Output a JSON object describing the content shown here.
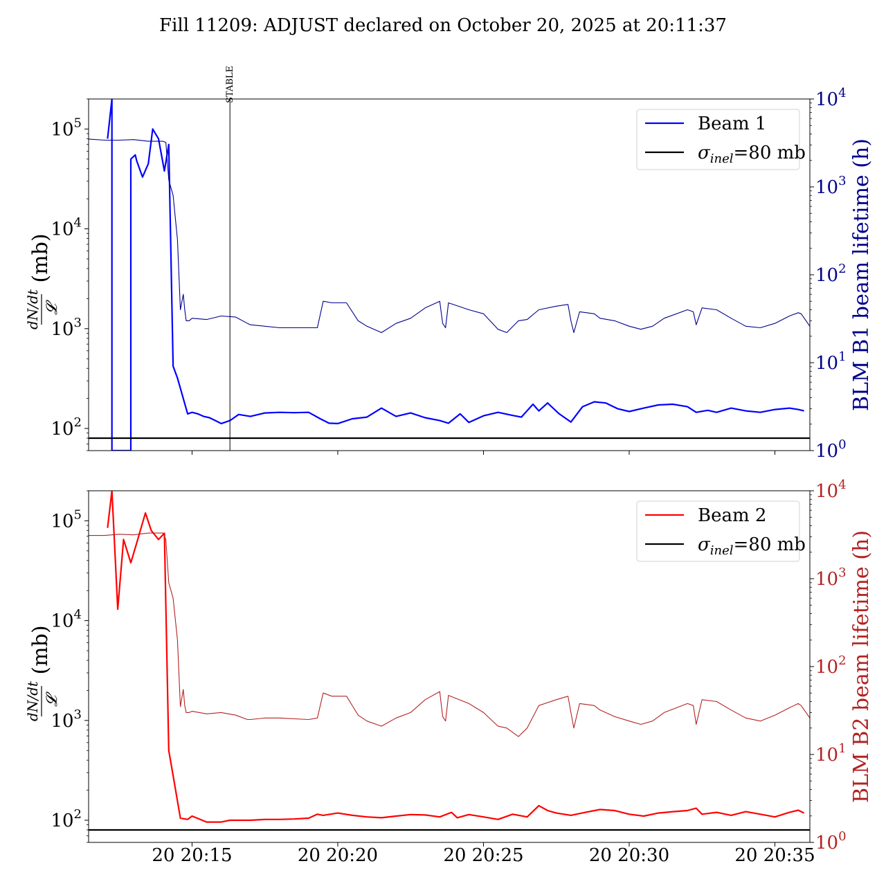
{
  "title": "Fill 11209: ADJUST declared on October 20, 2025 at 20:11:37",
  "colors": {
    "beam1": "#0000ff",
    "beam1_blm": "#00008b",
    "beam2": "#ff0000",
    "beam2_blm": "#b22222",
    "sigma": "#000000"
  },
  "chart_data": [
    {
      "type": "line",
      "panel": "top",
      "x_unit": "minutes after 20:11",
      "xlim": [
        11.45,
        36.2
      ],
      "x_ticks": [
        {
          "x": 15,
          "label": "20 20:15"
        },
        {
          "x": 20,
          "label": "20 20:20"
        },
        {
          "x": 25,
          "label": "20 20:25"
        },
        {
          "x": 30,
          "label": "20 20:30"
        },
        {
          "x": 35,
          "label": "20 20:35"
        }
      ],
      "x_tick_labels_shown": false,
      "left_axis": {
        "label_num": "dN/dt",
        "label_den": "𝓛",
        "label_unit": "(mb)",
        "scale": "log",
        "ylim": [
          60,
          200000
        ],
        "ticks": [
          100,
          1000,
          10000,
          100000
        ],
        "tick_labels": [
          "10",
          "10",
          "10",
          "10"
        ],
        "tick_exponents": [
          "2",
          "3",
          "4",
          "5"
        ]
      },
      "right_axis": {
        "label": "BLM B1 beam lifetime (h)",
        "color": "#00008b",
        "scale": "log",
        "ylim": [
          1,
          10000
        ],
        "ticks": [
          1,
          10,
          100,
          1000,
          10000
        ],
        "tick_labels": [
          "10",
          "10",
          "10",
          "10",
          "10"
        ],
        "tick_exponents": [
          "0",
          "1",
          "2",
          "3",
          "4"
        ]
      },
      "vline": {
        "x": 16.3,
        "label": "STABLE"
      },
      "sigma_inel_mb": 80,
      "legend": {
        "position": "top-right",
        "entries": [
          {
            "label": "Beam 1",
            "color": "#0000ff"
          },
          {
            "label_symbol": "σ",
            "label_sub": "inel",
            "label_rest": "=80 mb",
            "color": "#000000"
          }
        ]
      },
      "series": [
        {
          "name": "Beam 1",
          "axis": "left",
          "color": "#0000ff",
          "width": 2.2,
          "x": [
            12.1,
            12.25,
            12.25,
            12.9,
            12.9,
            13.05,
            13.1,
            13.3,
            13.5,
            13.65,
            13.85,
            14.05,
            14.2,
            14.35,
            14.5,
            14.85,
            15.0,
            15.2,
            15.4,
            15.6,
            15.8,
            16.0,
            16.3,
            16.6,
            17.0,
            17.5,
            18.0,
            18.5,
            19.0,
            19.4,
            19.7,
            20.0,
            20.5,
            21.0,
            21.5,
            22.0,
            22.5,
            23.0,
            23.5,
            23.8,
            24.2,
            24.5,
            25.0,
            25.5,
            26.0,
            26.3,
            26.7,
            26.9,
            27.2,
            27.6,
            28.0,
            28.4,
            28.8,
            29.2,
            29.6,
            30.0,
            30.5,
            31.0,
            31.5,
            32.0,
            32.3,
            32.7,
            33.0,
            33.5,
            34.0,
            34.5,
            35.0,
            35.5,
            35.8,
            36.0
          ],
          "y": [
            80000,
            200000,
            60,
            60,
            50000,
            55000,
            48000,
            33000,
            45000,
            100000,
            80000,
            38000,
            70000,
            420,
            320,
            140,
            145,
            140,
            132,
            128,
            120,
            112,
            120,
            138,
            132,
            143,
            145,
            144,
            145,
            125,
            113,
            112,
            125,
            130,
            160,
            132,
            143,
            128,
            120,
            113,
            140,
            115,
            134,
            145,
            135,
            130,
            175,
            150,
            180,
            140,
            116,
            165,
            185,
            180,
            158,
            148,
            160,
            172,
            175,
            165,
            145,
            152,
            145,
            160,
            150,
            145,
            155,
            160,
            155,
            150
          ]
        },
        {
          "name": "Beam 1 BLM lifetime",
          "axis": "right",
          "color": "#00008b",
          "width": 1.1,
          "x": [
            11.45,
            12.0,
            12.5,
            13.0,
            13.5,
            14.0,
            14.1,
            14.2,
            14.35,
            14.5,
            14.6,
            14.7,
            14.75,
            14.8,
            14.9,
            15.0,
            15.5,
            16.0,
            16.5,
            16.9,
            17.0,
            17.5,
            18.0,
            19.0,
            19.3,
            19.5,
            19.8,
            20.3,
            20.7,
            21.0,
            21.5,
            22.0,
            22.5,
            23.0,
            23.5,
            23.6,
            23.7,
            23.8,
            24.5,
            25.0,
            25.5,
            25.8,
            26.2,
            26.5,
            26.9,
            27.5,
            27.9,
            28.0,
            28.1,
            28.3,
            28.8,
            29.0,
            29.5,
            30.0,
            30.4,
            30.8,
            31.2,
            32.0,
            32.2,
            32.3,
            32.5,
            33.0,
            33.5,
            34.0,
            34.5,
            35.0,
            35.5,
            35.8,
            35.9,
            36.2
          ],
          "y": [
            3500,
            3400,
            3400,
            3450,
            3300,
            3300,
            3200,
            1200,
            800,
            250,
            40,
            60,
            40,
            30,
            30,
            32,
            31,
            34,
            33,
            28,
            27,
            26,
            25,
            25,
            25,
            50,
            48,
            48,
            30,
            26,
            22,
            28,
            32,
            42,
            50,
            28,
            25,
            48,
            40,
            36,
            24,
            22,
            30,
            31,
            40,
            44,
            46,
            30,
            22,
            38,
            36,
            32,
            30,
            26,
            24,
            26,
            32,
            40,
            38,
            27,
            42,
            40,
            32,
            26,
            25,
            28,
            34,
            37,
            36,
            26
          ]
        }
      ]
    },
    {
      "type": "line",
      "panel": "bottom",
      "x_unit": "minutes after 20:11",
      "xlim": [
        11.45,
        36.2
      ],
      "x_ticks": [
        {
          "x": 15,
          "label": "20 20:15"
        },
        {
          "x": 20,
          "label": "20 20:20"
        },
        {
          "x": 25,
          "label": "20 20:25"
        },
        {
          "x": 30,
          "label": "20 20:30"
        },
        {
          "x": 35,
          "label": "20 20:35"
        }
      ],
      "x_tick_labels_shown": true,
      "left_axis": {
        "label_num": "dN/dt",
        "label_den": "𝓛",
        "label_unit": "(mb)",
        "scale": "log",
        "ylim": [
          60,
          200000
        ],
        "ticks": [
          100,
          1000,
          10000,
          100000
        ],
        "tick_labels": [
          "10",
          "10",
          "10",
          "10"
        ],
        "tick_exponents": [
          "2",
          "3",
          "4",
          "5"
        ]
      },
      "right_axis": {
        "label": "BLM B2 beam lifetime (h)",
        "color": "#b22222",
        "scale": "log",
        "ylim": [
          1,
          10000
        ],
        "ticks": [
          1,
          10,
          100,
          1000,
          10000
        ],
        "tick_labels": [
          "10",
          "10",
          "10",
          "10",
          "10"
        ],
        "tick_exponents": [
          "0",
          "1",
          "2",
          "3",
          "4"
        ]
      },
      "sigma_inel_mb": 80,
      "legend": {
        "position": "top-right",
        "entries": [
          {
            "label": "Beam 2",
            "color": "#ff0000"
          },
          {
            "label_symbol": "σ",
            "label_sub": "inel",
            "label_rest": "=80 mb",
            "color": "#000000"
          }
        ]
      },
      "series": [
        {
          "name": "Beam 2",
          "axis": "left",
          "color": "#ff0000",
          "width": 2.2,
          "x": [
            12.1,
            12.25,
            12.45,
            12.65,
            12.9,
            13.1,
            13.4,
            13.6,
            13.85,
            14.05,
            14.2,
            14.35,
            14.6,
            14.85,
            15.0,
            15.5,
            16.0,
            16.3,
            16.6,
            17.0,
            17.5,
            18.0,
            18.5,
            19.0,
            19.3,
            19.5,
            20.0,
            20.5,
            21.0,
            21.5,
            22.0,
            22.5,
            23.0,
            23.5,
            23.9,
            24.1,
            24.5,
            25.0,
            25.5,
            26.0,
            26.5,
            26.9,
            27.2,
            27.5,
            28.0,
            28.5,
            29.0,
            29.5,
            30.0,
            30.5,
            31.0,
            31.5,
            32.0,
            32.3,
            32.5,
            33.0,
            33.5,
            34.0,
            34.5,
            35.0,
            35.5,
            35.8,
            36.0
          ],
          "y": [
            85000,
            200000,
            13000,
            65000,
            38000,
            60000,
            120000,
            80000,
            65000,
            75000,
            500,
            280,
            105,
            102,
            110,
            96,
            96,
            100,
            100,
            100,
            102,
            102,
            103,
            105,
            115,
            112,
            118,
            112,
            108,
            106,
            110,
            114,
            113,
            108,
            120,
            106,
            114,
            108,
            102,
            115,
            108,
            140,
            125,
            118,
            112,
            120,
            128,
            125,
            115,
            110,
            118,
            122,
            125,
            132,
            115,
            120,
            112,
            122,
            115,
            108,
            120,
            126,
            118
          ]
        },
        {
          "name": "Beam 2 BLM lifetime",
          "axis": "right",
          "color": "#b22222",
          "width": 1.1,
          "x": [
            11.45,
            12.0,
            12.5,
            13.0,
            13.5,
            14.0,
            14.1,
            14.2,
            14.35,
            14.5,
            14.6,
            14.7,
            14.75,
            14.8,
            14.9,
            15.0,
            15.5,
            16.0,
            16.5,
            16.9,
            17.0,
            17.5,
            18.0,
            19.0,
            19.3,
            19.5,
            19.8,
            20.3,
            20.7,
            21.0,
            21.5,
            22.0,
            22.5,
            23.0,
            23.5,
            23.6,
            23.7,
            23.8,
            24.5,
            25.0,
            25.5,
            25.8,
            26.2,
            26.5,
            26.9,
            27.5,
            27.9,
            28.0,
            28.1,
            28.3,
            28.8,
            29.0,
            29.5,
            30.0,
            30.4,
            30.8,
            31.2,
            32.0,
            32.2,
            32.3,
            32.5,
            33.0,
            33.5,
            34.0,
            34.5,
            35.0,
            35.5,
            35.8,
            35.9,
            36.2
          ],
          "y": [
            3100,
            3100,
            3200,
            3150,
            3300,
            3300,
            2800,
            900,
            600,
            200,
            35,
            55,
            36,
            30,
            30,
            31,
            29,
            30,
            28,
            25,
            25,
            26,
            26,
            25,
            26,
            50,
            46,
            46,
            28,
            24,
            21,
            26,
            30,
            42,
            52,
            27,
            24,
            47,
            38,
            30,
            21,
            20,
            16,
            20,
            36,
            42,
            46,
            30,
            20,
            38,
            36,
            32,
            27,
            24,
            22,
            24,
            30,
            38,
            36,
            22,
            42,
            40,
            32,
            26,
            24,
            28,
            34,
            38,
            36,
            26
          ]
        }
      ]
    }
  ]
}
